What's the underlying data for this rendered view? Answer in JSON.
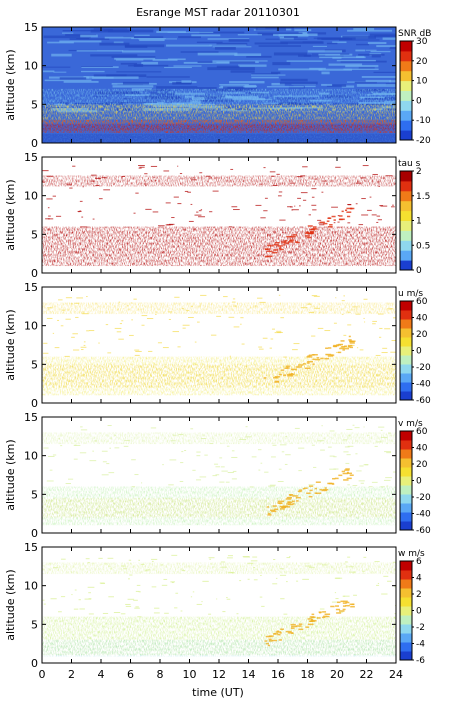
{
  "chart_data": {
    "title": "Esrange MST radar 20110301",
    "type": "heatmap",
    "x_axis": {
      "label": "time (UT)",
      "range": [
        0,
        24
      ],
      "ticks": [
        0,
        2,
        4,
        6,
        8,
        10,
        12,
        14,
        16,
        18,
        20,
        22,
        24
      ]
    },
    "panels": [
      {
        "id": "snr",
        "ylabel": "altitude (km)",
        "ylim": [
          0,
          15
        ],
        "yticks": [
          0,
          5,
          10,
          15
        ],
        "colorbar": {
          "label": "SNR dB",
          "range": [
            -20,
            30
          ],
          "ticks": [
            30,
            20,
            10,
            0,
            -10,
            -20
          ],
          "colors": [
            "#1a3fd0",
            "#2e6ef0",
            "#5aa8f5",
            "#8fd8ee",
            "#bff0c0",
            "#e8f07a",
            "#f5c030",
            "#f07a18",
            "#e03010",
            "#c00000"
          ]
        }
      },
      {
        "id": "tau",
        "ylabel": "altitude (km)",
        "ylim": [
          0,
          15
        ],
        "yticks": [
          0,
          5,
          10,
          15
        ],
        "colorbar": {
          "label": "tau s",
          "range": [
            0,
            2
          ],
          "ticks": [
            2,
            1.5,
            1,
            0.5,
            0
          ],
          "colors": [
            "#1a3fd0",
            "#5aa8f5",
            "#8fd8ee",
            "#bff0c0",
            "#e8f07a",
            "#f5e030",
            "#f5c030",
            "#f07a18",
            "#e03010",
            "#a80000"
          ]
        }
      },
      {
        "id": "u",
        "ylabel": "altitude (km)",
        "ylim": [
          0,
          15
        ],
        "yticks": [
          0,
          5,
          10,
          15
        ],
        "colorbar": {
          "label": "u m/s",
          "range": [
            -60,
            60
          ],
          "ticks": [
            60,
            40,
            20,
            0,
            -20,
            -40,
            -60
          ],
          "colors": [
            "#1a3fd0",
            "#2e6ef0",
            "#5aa8f5",
            "#8fd8ee",
            "#bff0c0",
            "#e8f07a",
            "#f5e030",
            "#f5c030",
            "#f07a18",
            "#e03010",
            "#c00000"
          ]
        }
      },
      {
        "id": "v",
        "ylabel": "altitude (km)",
        "ylim": [
          0,
          15
        ],
        "yticks": [
          0,
          5,
          10,
          15
        ],
        "colorbar": {
          "label": "v m/s",
          "range": [
            -60,
            60
          ],
          "ticks": [
            60,
            40,
            20,
            0,
            -20,
            -40,
            -60
          ],
          "colors": [
            "#1a3fd0",
            "#2e6ef0",
            "#5aa8f5",
            "#8fd8ee",
            "#bff0c0",
            "#e8f07a",
            "#f5e030",
            "#f5c030",
            "#f07a18",
            "#e03010",
            "#c00000"
          ]
        }
      },
      {
        "id": "w",
        "ylabel": "altitude (km)",
        "ylim": [
          0,
          15
        ],
        "yticks": [
          0,
          5,
          10,
          15
        ],
        "colorbar": {
          "label": "w m/s",
          "range": [
            -6,
            6
          ],
          "ticks": [
            6,
            4,
            2,
            0,
            -2,
            -4,
            -6
          ],
          "colors": [
            "#1a3fd0",
            "#2e6ef0",
            "#5aa8f5",
            "#8fd8ee",
            "#bff0c0",
            "#e8f07a",
            "#f5e030",
            "#f5c030",
            "#f07a18",
            "#e03010",
            "#c00000"
          ]
        }
      }
    ]
  }
}
